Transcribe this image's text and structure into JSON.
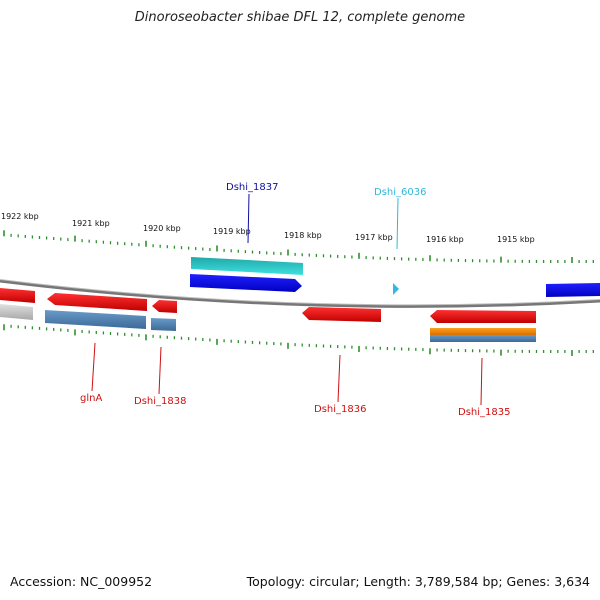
{
  "title": "Dinoroseobacter shibae DFL 12, complete genome",
  "footer": {
    "accession": "Accession: NC_009952",
    "topology": "Topology: circular; Length: 3,789,584 bp; Genes: 3,634"
  },
  "colors": {
    "forward_gene": "#1010e0",
    "reverse_gene": "#e01010",
    "rna": "#20c8d0",
    "cds_reverse": "#4a7fb0",
    "cds_forward": "#30c0c8",
    "misc": "#f08c10",
    "pseudo": "#bfbfbf",
    "tick": "#2f8f2f",
    "backbone": "#777777"
  },
  "ticks": {
    "labels": [
      "1922 kbp",
      "1921 kbp",
      "1920 kbp",
      "1919 kbp",
      "1918 kbp",
      "1917 kbp",
      "1916 kbp",
      "1915 kbp"
    ]
  },
  "gene_labels": [
    {
      "name": "Dshi_1837",
      "color": "#1010a0"
    },
    {
      "name": "Dshi_6036",
      "color": "#30b8d8"
    },
    {
      "name": "glnA",
      "color": "#d01010"
    },
    {
      "name": "Dshi_1838",
      "color": "#d01010"
    },
    {
      "name": "Dshi_1836",
      "color": "#d01010"
    },
    {
      "name": "Dshi_1835",
      "color": "#d01010"
    }
  ]
}
